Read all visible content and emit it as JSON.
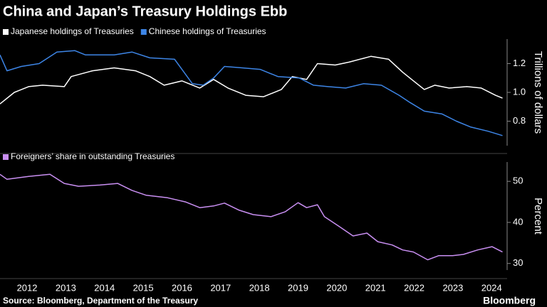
{
  "title": "China and Japan’s Treasury Holdings Ebb",
  "source": "Source: Bloomberg, Department of the Treasury",
  "brand": "Bloomberg",
  "chart_data": [
    {
      "type": "line",
      "y_label": "Trillions of dollars",
      "xlim": [
        2011.8,
        2024.9
      ],
      "ylim": [
        0.63,
        1.37
      ],
      "yticks": [
        0.8,
        1.0,
        1.2
      ],
      "grid": false,
      "series": [
        {
          "name": "Japanese holdings of Treasuries",
          "color": "#ffffff",
          "x": [
            2011.8,
            2012.17,
            2012.54,
            2012.9,
            2013.46,
            2013.64,
            2014.19,
            2014.75,
            2015.3,
            2015.67,
            2016.04,
            2016.5,
            2016.96,
            2017.32,
            2017.69,
            2018.15,
            2018.61,
            2019.07,
            2019.35,
            2019.72,
            2020.0,
            2020.46,
            2020.82,
            2021.38,
            2021.84,
            2022.2,
            2022.48,
            2022.76,
            2023.03,
            2023.4,
            2023.86,
            2024.23,
            2024.6,
            2024.78
          ],
          "values": [
            0.92,
            1.0,
            1.04,
            1.05,
            1.04,
            1.11,
            1.15,
            1.17,
            1.15,
            1.11,
            1.05,
            1.08,
            1.03,
            1.09,
            1.03,
            0.98,
            0.97,
            1.02,
            1.11,
            1.09,
            1.2,
            1.19,
            1.21,
            1.25,
            1.23,
            1.14,
            1.08,
            1.02,
            1.05,
            1.03,
            1.04,
            1.03,
            0.98,
            0.96
          ]
        },
        {
          "name": "Chinese holdings of Treasuries",
          "color": "#3d85e6",
          "x": [
            2011.8,
            2011.98,
            2012.35,
            2012.81,
            2013.27,
            2013.73,
            2014.01,
            2014.75,
            2015.21,
            2015.67,
            2016.31,
            2016.77,
            2017.05,
            2017.32,
            2017.6,
            2018.06,
            2018.52,
            2018.98,
            2019.53,
            2019.9,
            2020.27,
            2020.73,
            2021.19,
            2021.65,
            2022.11,
            2022.39,
            2022.76,
            2023.22,
            2023.59,
            2023.95,
            2024.41,
            2024.78
          ],
          "values": [
            1.26,
            1.15,
            1.18,
            1.2,
            1.28,
            1.29,
            1.26,
            1.26,
            1.28,
            1.24,
            1.23,
            1.06,
            1.05,
            1.1,
            1.18,
            1.17,
            1.16,
            1.11,
            1.1,
            1.05,
            1.04,
            1.03,
            1.06,
            1.05,
            0.98,
            0.93,
            0.87,
            0.85,
            0.8,
            0.76,
            0.73,
            0.7
          ]
        }
      ]
    },
    {
      "type": "line",
      "y_label": "Percent",
      "xlim": [
        2011.8,
        2024.9
      ],
      "ylim": [
        28.4,
        54.7
      ],
      "yticks": [
        30,
        40,
        50
      ],
      "grid": false,
      "xticks": [
        {
          "value": 2012.5,
          "label": "2012"
        },
        {
          "value": 2013.5,
          "label": "2013"
        },
        {
          "value": 2014.5,
          "label": "2014"
        },
        {
          "value": 2015.5,
          "label": "2015"
        },
        {
          "value": 2016.5,
          "label": "2016"
        },
        {
          "value": 2017.5,
          "label": "2017"
        },
        {
          "value": 2018.5,
          "label": "2018"
        },
        {
          "value": 2019.5,
          "label": "2019"
        },
        {
          "value": 2020.5,
          "label": "2020"
        },
        {
          "value": 2021.5,
          "label": "2021"
        },
        {
          "value": 2022.5,
          "label": "2022"
        },
        {
          "value": 2023.5,
          "label": "2023"
        },
        {
          "value": 2024.5,
          "label": "2024"
        }
      ],
      "series": [
        {
          "name": "Foreigners’ share in outstanding Treasuries",
          "color": "#c98ff2",
          "x": [
            2011.8,
            2011.98,
            2012.54,
            2013.09,
            2013.46,
            2013.83,
            2014.38,
            2014.84,
            2015.21,
            2015.58,
            2016.13,
            2016.59,
            2016.96,
            2017.32,
            2017.6,
            2017.97,
            2018.34,
            2018.8,
            2019.17,
            2019.5,
            2019.72,
            2020.0,
            2020.18,
            2020.55,
            2020.92,
            2021.28,
            2021.56,
            2021.93,
            2022.2,
            2022.48,
            2022.85,
            2023.13,
            2023.49,
            2023.77,
            2024.14,
            2024.51,
            2024.78
          ],
          "values": [
            51.7,
            50.5,
            51.2,
            51.7,
            49.5,
            48.8,
            49.1,
            49.5,
            47.8,
            46.6,
            46.0,
            45.0,
            43.6,
            44.0,
            44.7,
            43.0,
            41.9,
            41.4,
            42.6,
            44.8,
            43.6,
            44.3,
            41.4,
            39.1,
            36.7,
            37.4,
            35.3,
            34.5,
            33.3,
            32.8,
            30.9,
            31.9,
            31.9,
            32.2,
            33.3,
            34.1,
            32.8
          ]
        }
      ]
    }
  ]
}
